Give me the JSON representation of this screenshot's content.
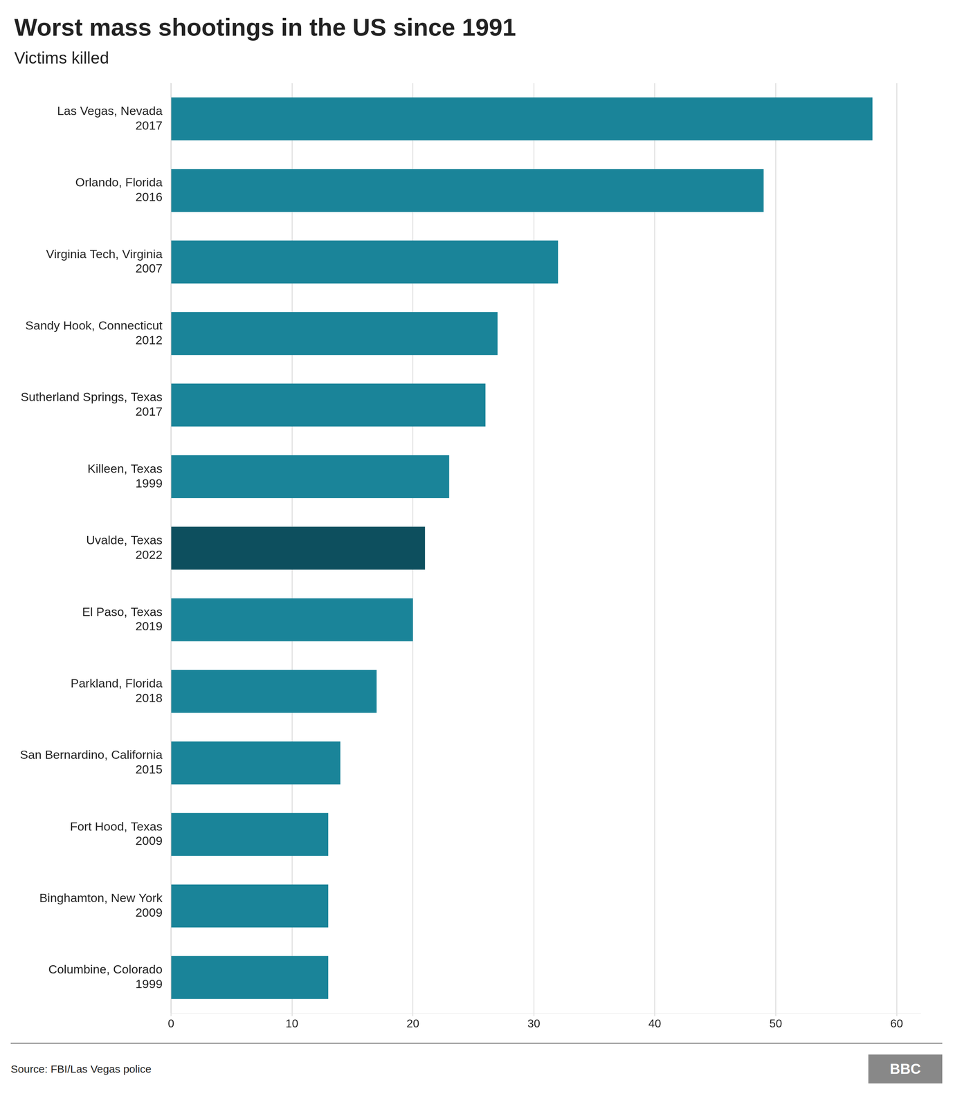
{
  "chart_data": {
    "type": "bar",
    "orientation": "horizontal",
    "title": "Worst mass shootings in the US since 1991",
    "subtitle": "Victims killed",
    "source": "Source: FBI/Las Vegas police",
    "annotations": [
      "BBC"
    ],
    "categories": [
      [
        "Las Vegas, Nevada",
        "2017"
      ],
      [
        "Orlando, Florida",
        "2016"
      ],
      [
        "Virginia Tech, Virginia",
        "2007"
      ],
      [
        "Sandy Hook, Connecticut",
        "2012"
      ],
      [
        "Sutherland Springs, Texas",
        "2017"
      ],
      [
        "Killeen, Texas",
        "1999"
      ],
      [
        "Uvalde, Texas",
        "2022"
      ],
      [
        "El Paso, Texas",
        "2019"
      ],
      [
        "Parkland, Florida",
        "2018"
      ],
      [
        "San Bernardino, California",
        "2015"
      ],
      [
        "Fort Hood, Texas",
        "2009"
      ],
      [
        "Binghamton, New York",
        "2009"
      ],
      [
        "Columbine, Colorado",
        "1999"
      ]
    ],
    "values": [
      58,
      49,
      32,
      27,
      26,
      23,
      21,
      20,
      17,
      14,
      13,
      13,
      13
    ],
    "colors": [
      "#1a8499",
      "#1a8499",
      "#1a8499",
      "#1a8499",
      "#1a8499",
      "#1a8499",
      "#0d4f5e",
      "#1a8499",
      "#1a8499",
      "#1a8499",
      "#1a8499",
      "#1a8499",
      "#1a8499"
    ],
    "xlim": [
      0,
      62
    ],
    "xticks": [
      0,
      10,
      20,
      30,
      40,
      50,
      60
    ],
    "grid": true
  }
}
